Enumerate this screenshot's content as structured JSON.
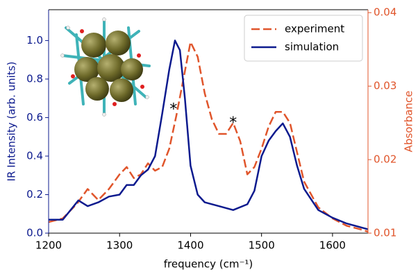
{
  "chart_data": {
    "type": "line",
    "xlabel": "frequency (cm⁻¹)",
    "ylabel": "IR Intensity (arb. units)",
    "y2label": "Absorbance",
    "xlim": [
      1200,
      1650
    ],
    "xticks": [
      1200,
      1300,
      1400,
      1500,
      1600
    ],
    "ylim": [
      0,
      1.16
    ],
    "yticks": [
      {
        "value": 0,
        "label": "0.0"
      },
      0.2,
      0.4,
      0.6,
      0.8,
      {
        "value": 1,
        "label": "1.0"
      }
    ],
    "y2lim": [
      0.01,
      0.0404
    ],
    "y2ticks": [
      0.01,
      0.02,
      0.03,
      0.04
    ],
    "legend": "upper right",
    "series": [
      {
        "name": "experiment",
        "color": "#e0552b",
        "linestyle": "dashed",
        "axis": "y2",
        "x": [
          1200,
          1220,
          1240,
          1255,
          1270,
          1285,
          1300,
          1310,
          1320,
          1330,
          1340,
          1350,
          1360,
          1370,
          1380,
          1390,
          1400,
          1410,
          1420,
          1430,
          1440,
          1450,
          1460,
          1470,
          1480,
          1490,
          1500,
          1510,
          1520,
          1530,
          1540,
          1550,
          1560,
          1580,
          1600,
          1620,
          1640,
          1650
        ],
        "values": [
          0.0115,
          0.012,
          0.014,
          0.016,
          0.0145,
          0.016,
          0.018,
          0.019,
          0.0175,
          0.018,
          0.0195,
          0.0185,
          0.019,
          0.0215,
          0.026,
          0.031,
          0.036,
          0.034,
          0.029,
          0.0255,
          0.0235,
          0.0235,
          0.025,
          0.0225,
          0.018,
          0.019,
          0.0215,
          0.0245,
          0.0265,
          0.0265,
          0.025,
          0.021,
          0.017,
          0.0135,
          0.012,
          0.011,
          0.0105,
          0.0102
        ]
      },
      {
        "name": "simulation",
        "color": "#0c1a8e",
        "linestyle": "solid",
        "x": [
          1200,
          1220,
          1242,
          1255,
          1270,
          1285,
          1300,
          1310,
          1320,
          1330,
          1340,
          1350,
          1360,
          1370,
          1378,
          1385,
          1392,
          1400,
          1410,
          1420,
          1440,
          1460,
          1480,
          1490,
          1500,
          1510,
          1520,
          1530,
          1540,
          1550,
          1560,
          1580,
          1600,
          1620,
          1640,
          1650
        ],
        "values": [
          0.07,
          0.07,
          0.17,
          0.14,
          0.16,
          0.19,
          0.2,
          0.25,
          0.25,
          0.3,
          0.33,
          0.4,
          0.62,
          0.85,
          1.0,
          0.95,
          0.7,
          0.35,
          0.2,
          0.16,
          0.14,
          0.12,
          0.15,
          0.22,
          0.4,
          0.48,
          0.53,
          0.57,
          0.5,
          0.35,
          0.23,
          0.12,
          0.08,
          0.05,
          0.03,
          0.02
        ]
      }
    ],
    "annotations": [
      {
        "text": "*",
        "x": 1376,
        "y": 0.64
      },
      {
        "text": "*",
        "x": 1460,
        "y": 0.57
      }
    ]
  }
}
